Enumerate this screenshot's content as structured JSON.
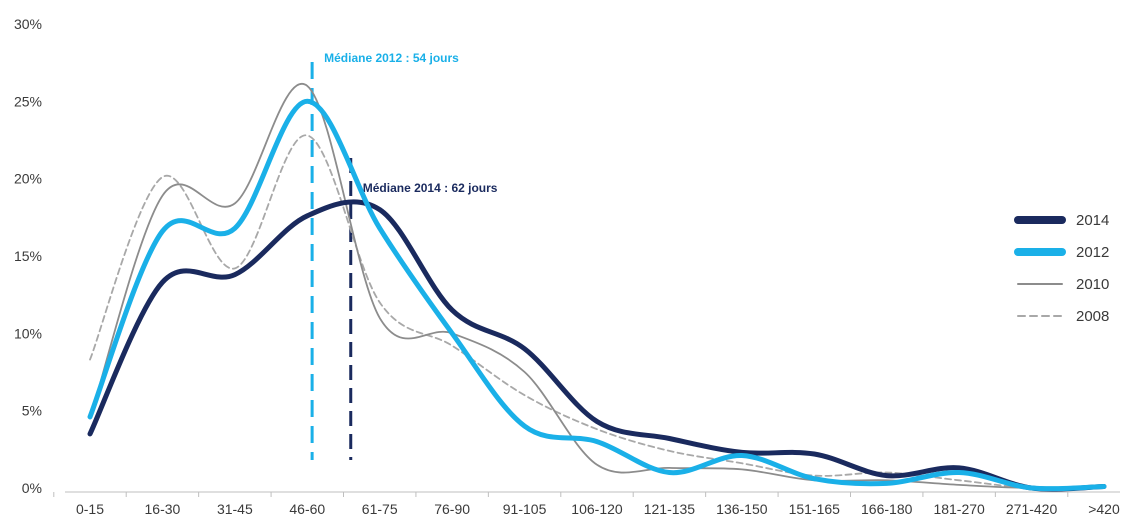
{
  "chart_data": {
    "type": "line",
    "title": "",
    "xlabel": "",
    "ylabel": "",
    "ylim": [
      0,
      30
    ],
    "yticks": [
      0,
      5,
      10,
      15,
      20,
      25,
      30
    ],
    "ytick_labels": [
      "0%",
      "5%",
      "10%",
      "15%",
      "20%",
      "25%",
      "30%"
    ],
    "categories": [
      "0-15",
      "16-30",
      "31-45",
      "46-60",
      "61-75",
      "76-90",
      "91-105",
      "106-120",
      "121-135",
      "136-150",
      "151-165",
      "166-180",
      "181-270",
      "271-420",
      ">420"
    ],
    "grid": false,
    "legend_position": "right",
    "series": [
      {
        "name": "2014",
        "color": "#1a2a5e",
        "style": "thick-solid",
        "values": [
          3.5,
          13.3,
          13.8,
          17.6,
          18.0,
          11.5,
          9.0,
          4.3,
          3.2,
          2.3,
          2.2,
          0.8,
          1.3,
          0.0,
          0.1
        ]
      },
      {
        "name": "2012",
        "color": "#1ab0e8",
        "style": "thick-solid",
        "values": [
          4.6,
          16.6,
          16.8,
          25.0,
          16.8,
          10.0,
          4.0,
          3.0,
          1.0,
          2.1,
          0.6,
          0.3,
          1.0,
          0.0,
          0.1
        ]
      },
      {
        "name": "2010",
        "color": "#8c8c8c",
        "style": "thin-solid",
        "values": [
          4.5,
          18.9,
          18.4,
          26.0,
          11.0,
          10.0,
          7.5,
          1.5,
          1.3,
          1.2,
          0.5,
          0.5,
          0.2,
          0.0,
          0.1
        ]
      },
      {
        "name": "2008",
        "color": "#a8a8a8",
        "style": "dashed",
        "values": [
          8.3,
          20.1,
          14.2,
          22.8,
          12.0,
          9.2,
          6.0,
          3.8,
          2.4,
          1.6,
          0.8,
          1.0,
          0.5,
          0.0,
          0.1
        ]
      }
    ],
    "annotations": [
      {
        "label": "Médiane 2012 : 54 jours",
        "x_value": 54,
        "color": "#1ab0e8"
      },
      {
        "label": "Médiane 2014 : 62 jours",
        "x_value": 62,
        "color": "#1a2a5e"
      }
    ]
  }
}
